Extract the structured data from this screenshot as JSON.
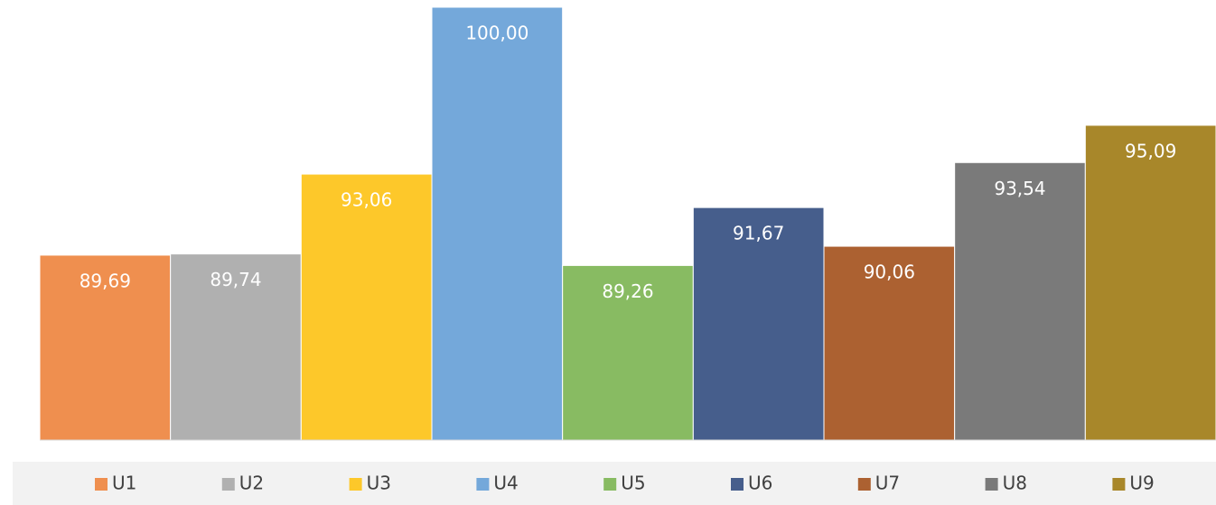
{
  "chart_data": {
    "type": "bar",
    "categories": [
      "U1",
      "U2",
      "U3",
      "U4",
      "U5",
      "U6",
      "U7",
      "U8",
      "U9"
    ],
    "values": [
      89.69,
      89.74,
      93.06,
      100.0,
      89.26,
      91.67,
      90.06,
      93.54,
      95.09
    ],
    "value_labels": [
      "89,69",
      "89,74",
      "93,06",
      "100,00",
      "89,26",
      "91,67",
      "90,06",
      "93,54",
      "95,09"
    ],
    "colors": [
      "#ef8f4f",
      "#b0b0b0",
      "#fdc82a",
      "#74a8da",
      "#88bb62",
      "#465e8c",
      "#ac6131",
      "#7a7a7a",
      "#a8872a"
    ],
    "ylim": [
      82,
      100
    ],
    "legend": "bottom"
  }
}
